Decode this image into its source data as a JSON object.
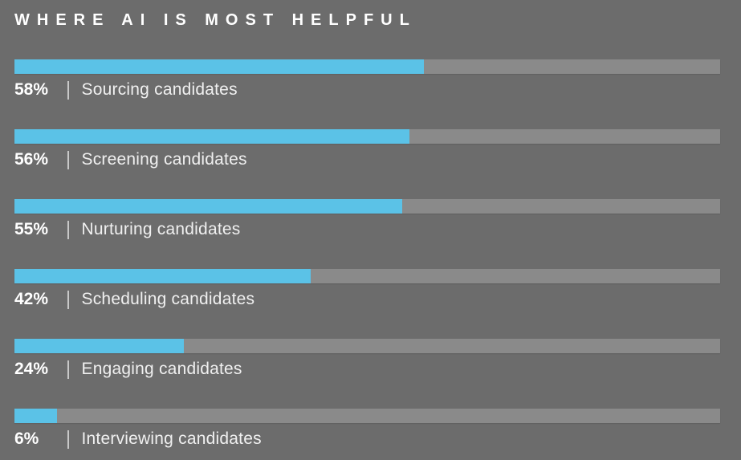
{
  "title": "WHERE AI IS MOST HELPFUL",
  "separator_glyph": "|",
  "colors": {
    "background": "#6c6c6c",
    "bar_fill": "#5bc2e7",
    "bar_track": "#8a8a8a",
    "title_text": "#ffffff",
    "value_text": "#ffffff",
    "label_text": "#f0f0f0",
    "separator": "#c8c8c8"
  },
  "chart_data": {
    "type": "bar",
    "orientation": "horizontal",
    "title": "WHERE AI IS MOST HELPFUL",
    "categories": [
      "Sourcing candidates",
      "Screening candidates",
      "Nurturing candidates",
      "Scheduling candidates",
      "Engaging candidates",
      "Interviewing candidates"
    ],
    "values": [
      58,
      56,
      55,
      42,
      24,
      6
    ],
    "value_labels": [
      "58%",
      "56%",
      "55%",
      "42%",
      "24%",
      "6%"
    ],
    "unit": "%",
    "xlim": [
      0,
      100
    ],
    "grid": false,
    "legend": false
  }
}
